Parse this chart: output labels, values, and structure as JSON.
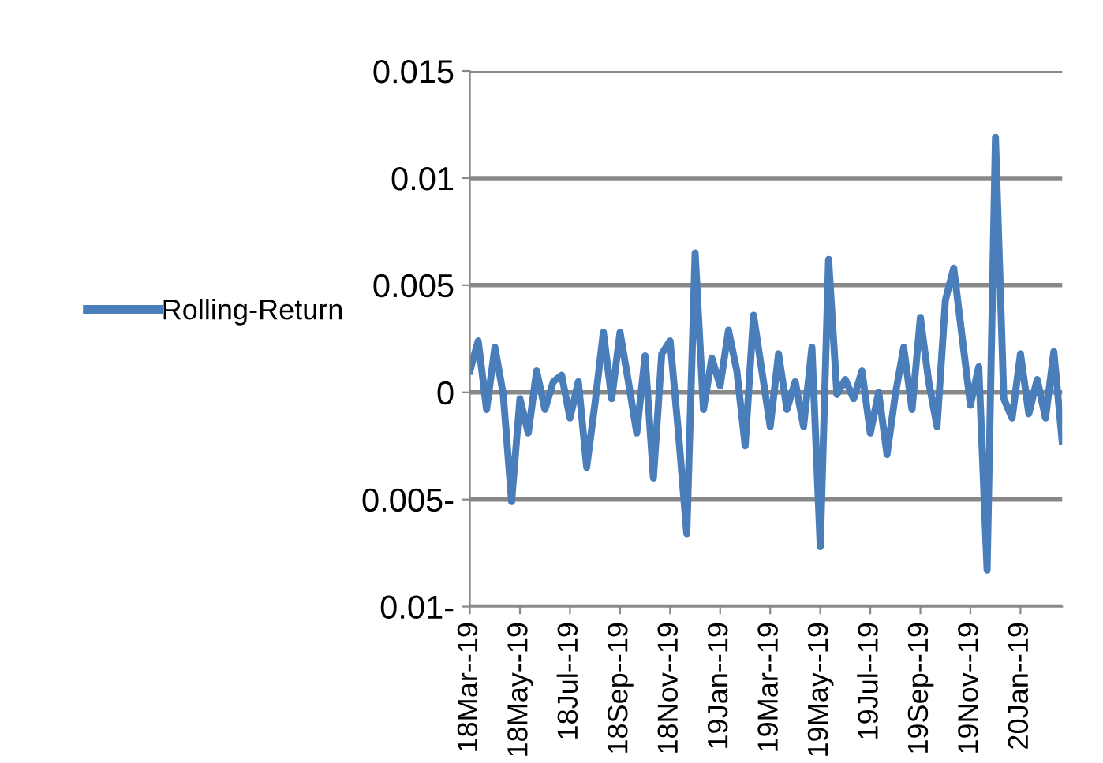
{
  "chart_data": {
    "type": "line",
    "legend": "left",
    "grid": "y",
    "marker": "none",
    "line_style": "solid",
    "ylim": [
      -0.01,
      0.015
    ],
    "yticks": [
      {
        "value": -0.01,
        "label": "0.01-"
      },
      {
        "value": -0.005,
        "label": "0.005-"
      },
      0,
      {
        "value": 0.005,
        "label": "0.005"
      },
      {
        "value": 0.01,
        "label": "0.01"
      },
      {
        "value": 0.015,
        "label": "0.015"
      }
    ],
    "categories": [
      "18Mar--19",
      null,
      null,
      null,
      null,
      null,
      "18May--19",
      null,
      null,
      null,
      null,
      null,
      "18Jul--19",
      null,
      null,
      null,
      null,
      null,
      "18Sep--19",
      null,
      null,
      null,
      null,
      null,
      "18Nov--19",
      null,
      null,
      null,
      null,
      null,
      "19Jan--19",
      null,
      null,
      null,
      null,
      null,
      "19Mar--19",
      null,
      null,
      null,
      null,
      null,
      "19May--19",
      null,
      null,
      null,
      null,
      null,
      "19Jul--19",
      null,
      null,
      null,
      null,
      null,
      "19Sep--19",
      null,
      null,
      null,
      null,
      null,
      "19Nov--19",
      null,
      null,
      null,
      null,
      null,
      "20Jan--19",
      null,
      null,
      null,
      null,
      null
    ],
    "series": [
      {
        "name": "Rolling-Return",
        "color": "#4a7ebb",
        "values": [
          0.001,
          0.0024,
          -0.0008,
          0.0021,
          -0.0001,
          -0.0051,
          -0.0003,
          -0.0019,
          0.001,
          -0.0008,
          0.0005,
          0.0008,
          -0.0012,
          0.0005,
          -0.0035,
          -0.0005,
          0.0028,
          -0.0003,
          0.0028,
          0.0005,
          -0.0019,
          0.0017,
          -0.004,
          0.0018,
          0.0024,
          -0.0019,
          -0.0066,
          0.0065,
          -0.0008,
          0.0016,
          0.0003,
          0.0029,
          0.001,
          -0.0025,
          0.0036,
          0.001,
          -0.0016,
          0.0018,
          -0.0008,
          0.0005,
          -0.0016,
          0.0021,
          -0.0072,
          0.0062,
          -0.0001,
          0.0006,
          -0.0003,
          0.001,
          -0.0019,
          0.0,
          -0.0029,
          -0.0001,
          0.0021,
          -0.0008,
          0.0035,
          0.0005,
          -0.0016,
          0.0043,
          0.0058,
          0.0026,
          -0.0006,
          0.0012,
          -0.0083,
          0.0119,
          -0.0003,
          -0.0012,
          0.0018,
          -0.001,
          0.0006,
          -0.0012,
          0.0019,
          -0.0023
        ]
      }
    ]
  }
}
